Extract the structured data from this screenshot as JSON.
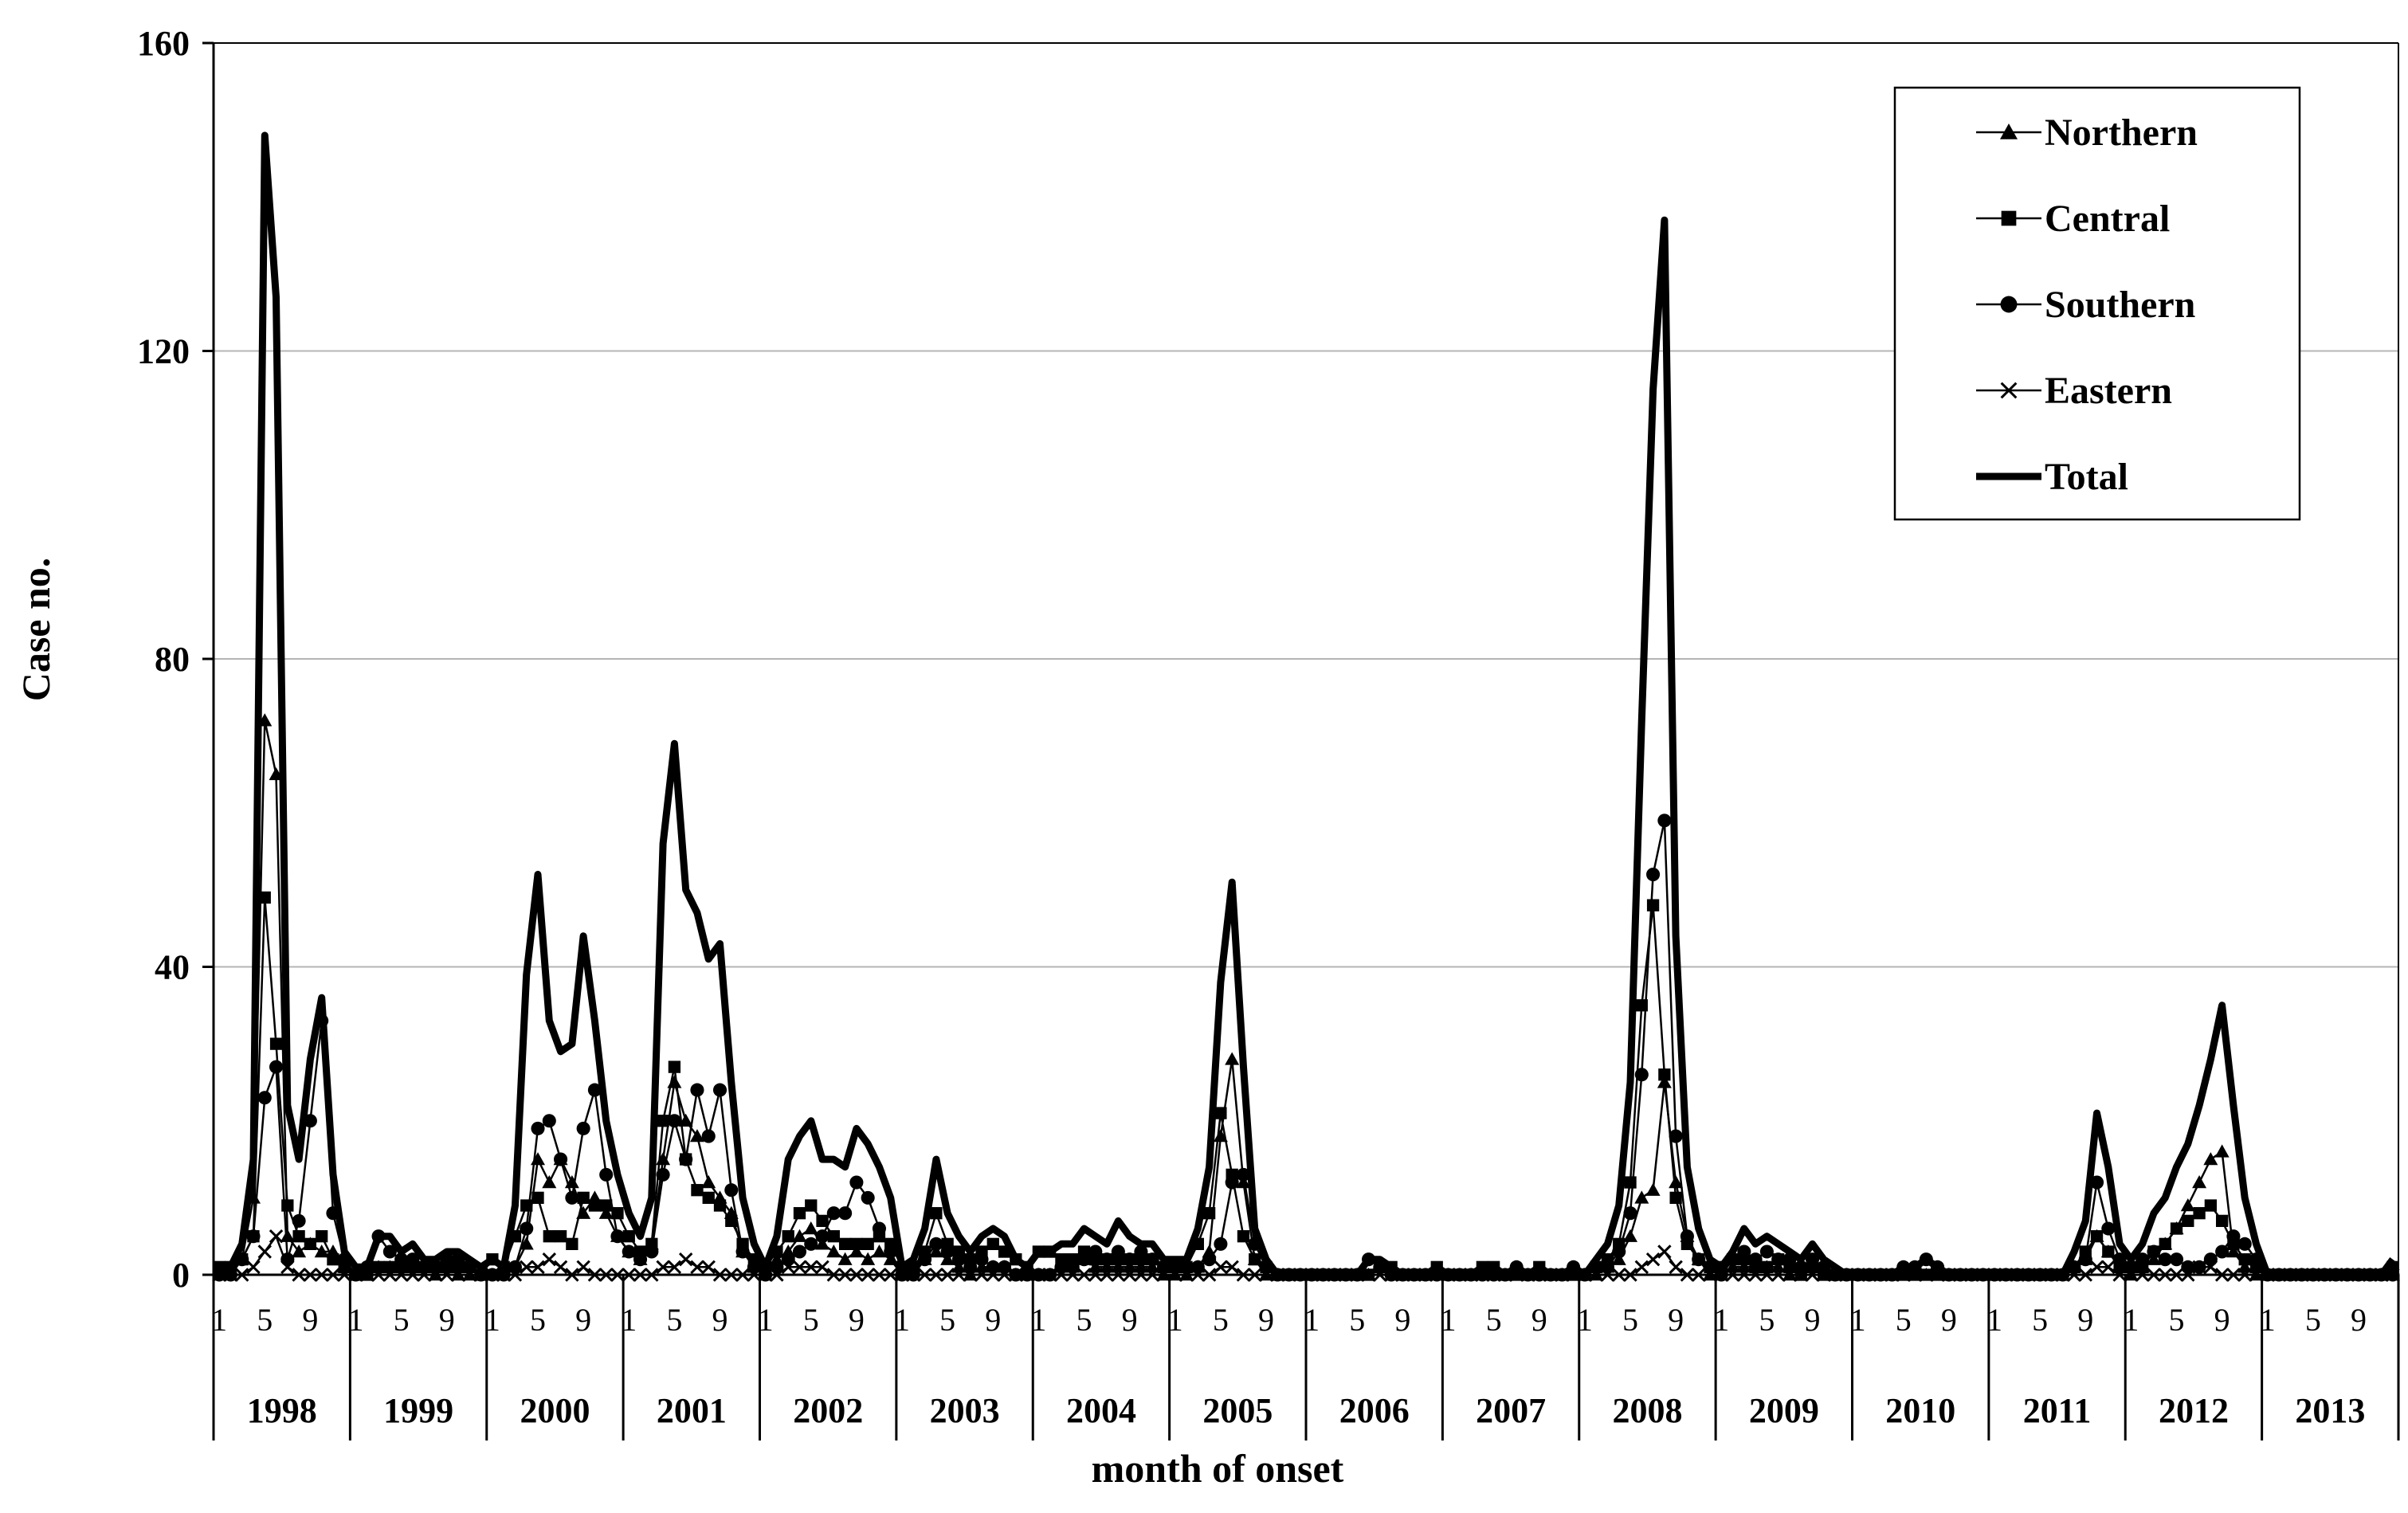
{
  "chart_data": {
    "type": "line",
    "title": "",
    "xlabel": "month of onset",
    "ylabel": "Case no.",
    "ylim": [
      0,
      160
    ],
    "y_ticks": [
      "0",
      "40",
      "80",
      "120",
      "160"
    ],
    "month_tick_labels": [
      "1",
      "5",
      "9"
    ],
    "years": [
      "1998",
      "1999",
      "2000",
      "2001",
      "2002",
      "2003",
      "2004",
      "2005",
      "2006",
      "2007",
      "2008",
      "2009",
      "2010",
      "2011",
      "2012",
      "2013"
    ],
    "grid": "horizontal",
    "legend_position": "top-right",
    "series": [
      {
        "name": "Northern",
        "marker": "triangle",
        "values": [
          0,
          0,
          2,
          10,
          72,
          65,
          5,
          3,
          4,
          3,
          3,
          1,
          0,
          0,
          1,
          1,
          1,
          1,
          1,
          0,
          1,
          0,
          0,
          0,
          0,
          0,
          1,
          4,
          15,
          12,
          15,
          12,
          8,
          10,
          8,
          5,
          3,
          2,
          4,
          15,
          25,
          20,
          18,
          12,
          10,
          8,
          3,
          1,
          0,
          2,
          3,
          5,
          6,
          4,
          3,
          2,
          3,
          2,
          3,
          2,
          0,
          1,
          2,
          3,
          2,
          1,
          0,
          1,
          1,
          1,
          0,
          0,
          0,
          0,
          1,
          1,
          2,
          1,
          1,
          1,
          1,
          1,
          1,
          0,
          0,
          0,
          1,
          3,
          18,
          28,
          12,
          2,
          0,
          0,
          0,
          0,
          0,
          0,
          0,
          0,
          0,
          0,
          1,
          0,
          0,
          0,
          0,
          0,
          0,
          0,
          0,
          0,
          0,
          0,
          0,
          0,
          0,
          0,
          0,
          0,
          0,
          0,
          1,
          2,
          5,
          10,
          11,
          25,
          12,
          5,
          2,
          0,
          0,
          1,
          1,
          1,
          1,
          1,
          0,
          0,
          1,
          0,
          0,
          0,
          0,
          0,
          0,
          0,
          0,
          0,
          0,
          0,
          0,
          0,
          0,
          0,
          0,
          0,
          0,
          0,
          0,
          0,
          0,
          1,
          2,
          5,
          3,
          1,
          0,
          1,
          2,
          4,
          6,
          9,
          12,
          15,
          16,
          3,
          1,
          0,
          0,
          0,
          0,
          0,
          0,
          0,
          0,
          0,
          0,
          0,
          0,
          0
        ]
      },
      {
        "name": "Central",
        "marker": "square",
        "values": [
          1,
          1,
          2,
          5,
          49,
          30,
          9,
          5,
          4,
          5,
          2,
          1,
          0,
          0,
          1,
          1,
          1,
          1,
          1,
          1,
          1,
          1,
          1,
          0,
          2,
          1,
          5,
          9,
          10,
          5,
          5,
          4,
          10,
          9,
          9,
          8,
          5,
          3,
          4,
          20,
          27,
          15,
          11,
          10,
          9,
          7,
          4,
          2,
          1,
          3,
          5,
          8,
          9,
          7,
          5,
          4,
          4,
          4,
          5,
          4,
          1,
          1,
          3,
          8,
          4,
          3,
          2,
          3,
          4,
          3,
          2,
          1,
          3,
          3,
          2,
          2,
          3,
          2,
          2,
          2,
          2,
          2,
          2,
          1,
          1,
          1,
          4,
          8,
          21,
          13,
          5,
          2,
          1,
          0,
          0,
          0,
          0,
          0,
          0,
          0,
          0,
          0,
          1,
          1,
          0,
          0,
          0,
          1,
          0,
          0,
          0,
          1,
          1,
          0,
          0,
          0,
          1,
          0,
          0,
          0,
          0,
          1,
          2,
          4,
          12,
          35,
          48,
          26,
          10,
          4,
          2,
          1,
          1,
          2,
          2,
          1,
          1,
          2,
          1,
          0,
          1,
          0,
          0,
          0,
          0,
          0,
          0,
          0,
          0,
          0,
          0,
          0,
          0,
          0,
          0,
          0,
          0,
          0,
          0,
          0,
          0,
          0,
          0,
          1,
          3,
          5,
          3,
          1,
          1,
          1,
          3,
          4,
          6,
          7,
          8,
          9,
          7,
          4,
          2,
          1,
          0,
          0,
          0,
          0,
          0,
          0,
          0,
          0,
          0,
          0,
          0,
          1
        ]
      },
      {
        "name": "Southern",
        "marker": "circle",
        "values": [
          0,
          0,
          2,
          5,
          23,
          27,
          2,
          7,
          20,
          33,
          8,
          2,
          0,
          1,
          5,
          3,
          2,
          2,
          1,
          1,
          2,
          2,
          1,
          0,
          0,
          0,
          1,
          6,
          19,
          20,
          15,
          10,
          19,
          24,
          13,
          5,
          3,
          2,
          3,
          13,
          20,
          15,
          24,
          18,
          24,
          11,
          3,
          1,
          0,
          1,
          2,
          3,
          4,
          5,
          8,
          8,
          12,
          10,
          6,
          3,
          0,
          0,
          2,
          4,
          3,
          2,
          1,
          2,
          1,
          1,
          0,
          0,
          0,
          0,
          1,
          1,
          2,
          3,
          2,
          3,
          2,
          3,
          2,
          1,
          1,
          1,
          1,
          2,
          4,
          12,
          13,
          4,
          1,
          0,
          0,
          0,
          0,
          0,
          0,
          0,
          0,
          2,
          1,
          0,
          0,
          0,
          0,
          0,
          0,
          0,
          0,
          0,
          0,
          0,
          1,
          0,
          0,
          0,
          0,
          1,
          0,
          1,
          1,
          3,
          8,
          26,
          52,
          59,
          18,
          5,
          2,
          1,
          0,
          2,
          3,
          2,
          3,
          2,
          2,
          1,
          2,
          1,
          0,
          0,
          0,
          0,
          0,
          0,
          1,
          1,
          2,
          1,
          0,
          0,
          0,
          0,
          0,
          0,
          0,
          0,
          0,
          0,
          0,
          1,
          2,
          12,
          6,
          2,
          1,
          2,
          3,
          2,
          2,
          1,
          1,
          2,
          3,
          5,
          4,
          2,
          0,
          0,
          0,
          0,
          0,
          0,
          0,
          0,
          0,
          0,
          0,
          0
        ]
      },
      {
        "name": "Eastern",
        "marker": "x",
        "values": [
          0,
          0,
          0,
          1,
          3,
          5,
          1,
          0,
          0,
          0,
          0,
          0,
          0,
          0,
          0,
          0,
          0,
          0,
          0,
          0,
          0,
          0,
          0,
          0,
          0,
          0,
          0,
          1,
          1,
          2,
          1,
          0,
          1,
          0,
          0,
          0,
          0,
          0,
          0,
          1,
          1,
          2,
          1,
          1,
          0,
          0,
          0,
          0,
          0,
          0,
          1,
          1,
          1,
          1,
          0,
          0,
          0,
          0,
          0,
          0,
          0,
          0,
          0,
          0,
          0,
          0,
          0,
          0,
          0,
          0,
          0,
          0,
          0,
          0,
          0,
          0,
          0,
          0,
          0,
          0,
          0,
          0,
          0,
          0,
          0,
          0,
          0,
          0,
          1,
          1,
          0,
          0,
          0,
          0,
          0,
          0,
          0,
          0,
          0,
          0,
          0,
          0,
          0,
          0,
          0,
          0,
          0,
          0,
          0,
          0,
          0,
          0,
          0,
          0,
          0,
          0,
          0,
          0,
          0,
          0,
          0,
          0,
          0,
          0,
          0,
          1,
          2,
          3,
          1,
          0,
          0,
          0,
          0,
          0,
          0,
          0,
          0,
          0,
          0,
          0,
          0,
          0,
          0,
          0,
          0,
          0,
          0,
          0,
          0,
          0,
          0,
          0,
          0,
          0,
          0,
          0,
          0,
          0,
          0,
          0,
          0,
          0,
          0,
          0,
          0,
          1,
          1,
          0,
          0,
          0,
          0,
          0,
          0,
          0,
          1,
          1,
          0,
          0,
          0,
          0,
          0,
          0,
          0,
          0,
          0,
          0,
          0,
          0,
          0,
          0,
          0,
          0
        ]
      },
      {
        "name": "Total",
        "marker": "none",
        "values": [
          1,
          1,
          4,
          15,
          148,
          127,
          22,
          15,
          28,
          36,
          13,
          3,
          1,
          1,
          5,
          5,
          3,
          4,
          2,
          2,
          3,
          3,
          2,
          1,
          2,
          1,
          9,
          39,
          52,
          33,
          29,
          30,
          44,
          33,
          20,
          13,
          8,
          5,
          10,
          56,
          69,
          50,
          47,
          41,
          43,
          25,
          10,
          4,
          1,
          5,
          15,
          18,
          20,
          15,
          15,
          14,
          19,
          17,
          14,
          10,
          1,
          2,
          6,
          15,
          8,
          5,
          3,
          5,
          6,
          5,
          2,
          1,
          3,
          3,
          4,
          4,
          6,
          5,
          4,
          7,
          5,
          4,
          4,
          2,
          2,
          2,
          6,
          14,
          38,
          51,
          27,
          6,
          2,
          0,
          0,
          0,
          0,
          0,
          0,
          0,
          0,
          2,
          2,
          1,
          0,
          0,
          0,
          1,
          0,
          0,
          0,
          1,
          1,
          0,
          1,
          0,
          1,
          0,
          0,
          1,
          0,
          2,
          4,
          9,
          25,
          72,
          115,
          137,
          44,
          14,
          6,
          2,
          1,
          3,
          6,
          4,
          5,
          4,
          3,
          2,
          4,
          2,
          1,
          0,
          0,
          0,
          0,
          0,
          1,
          1,
          2,
          1,
          0,
          0,
          0,
          0,
          0,
          0,
          0,
          0,
          0,
          0,
          0,
          3,
          7,
          21,
          14,
          4,
          2,
          4,
          8,
          10,
          14,
          17,
          22,
          28,
          35,
          22,
          10,
          4,
          0,
          0,
          0,
          0,
          0,
          0,
          0,
          0,
          0,
          0,
          0,
          2
        ]
      }
    ]
  }
}
